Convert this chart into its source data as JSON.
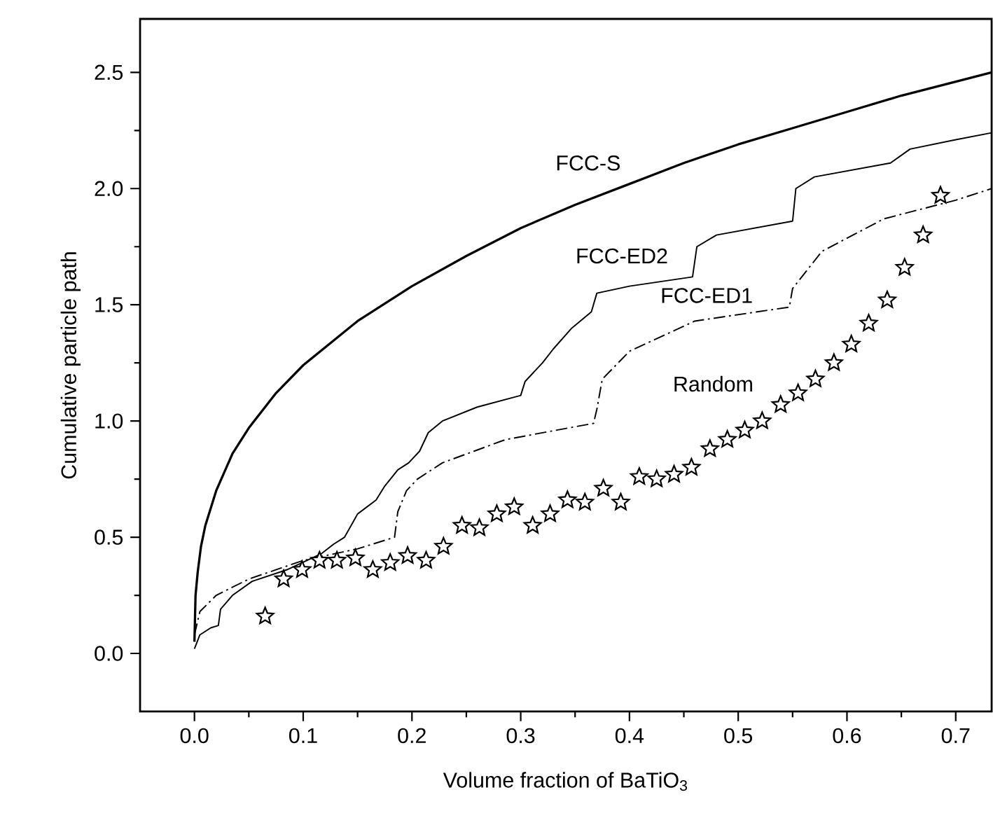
{
  "chart_data": {
    "type": "line",
    "xlabel": "Volume fraction of BaTiO$_{3}$",
    "ylabel": "Cumulative particle path",
    "xlim": [
      -0.05,
      0.733
    ],
    "ylim": [
      -0.25,
      2.73
    ],
    "xticks": [
      {
        "value": 0,
        "label": "0.0"
      },
      0.1,
      0.2,
      0.3,
      0.4,
      0.5,
      0.6,
      0.7
    ],
    "yticks": [
      {
        "value": 0,
        "label": "0.0"
      },
      0.5,
      {
        "value": 1,
        "label": "1.0"
      },
      1.5,
      {
        "value": 2,
        "label": "2.0"
      },
      2.5
    ],
    "grid": false,
    "legend": false,
    "series": [
      {
        "name": "FCC-S",
        "line_style": "solid",
        "color": "#000000",
        "x": [
          0,
          0.001,
          0.003,
          0.006,
          0.01,
          0.02,
          0.035,
          0.05,
          0.075,
          0.1,
          0.15,
          0.2,
          0.25,
          0.3,
          0.35,
          0.4,
          0.45,
          0.5,
          0.55,
          0.6,
          0.65,
          0.7,
          0.733
        ],
        "values": [
          0.05,
          0.25,
          0.35,
          0.46,
          0.55,
          0.7,
          0.86,
          0.97,
          1.12,
          1.24,
          1.43,
          1.58,
          1.71,
          1.83,
          1.93,
          2.02,
          2.11,
          2.19,
          2.26,
          2.33,
          2.4,
          2.46,
          2.5
        ]
      },
      {
        "name": "FCC-ED2",
        "line_style": "solid",
        "color": "#000000",
        "x": [
          0,
          0.005,
          0.015,
          0.022,
          0.024,
          0.035,
          0.053,
          0.085,
          0.117,
          0.128,
          0.138,
          0.15,
          0.167,
          0.175,
          0.187,
          0.197,
          0.207,
          0.215,
          0.228,
          0.26,
          0.3,
          0.304,
          0.32,
          0.33,
          0.347,
          0.365,
          0.37,
          0.4,
          0.458,
          0.462,
          0.48,
          0.55,
          0.553,
          0.57,
          0.64,
          0.658,
          0.7,
          0.733
        ],
        "values": [
          0.02,
          0.08,
          0.11,
          0.12,
          0.19,
          0.25,
          0.31,
          0.36,
          0.43,
          0.47,
          0.5,
          0.6,
          0.66,
          0.72,
          0.79,
          0.82,
          0.87,
          0.95,
          1.0,
          1.06,
          1.11,
          1.17,
          1.25,
          1.31,
          1.4,
          1.47,
          1.55,
          1.58,
          1.62,
          1.75,
          1.8,
          1.86,
          2.0,
          2.05,
          2.11,
          2.17,
          2.21,
          2.24
        ]
      },
      {
        "name": "FCC-ED1",
        "line_style": "dashed",
        "color": "#000000",
        "x": [
          0,
          0.005,
          0.02,
          0.05,
          0.1,
          0.15,
          0.184,
          0.187,
          0.195,
          0.205,
          0.228,
          0.286,
          0.367,
          0.37,
          0.375,
          0.4,
          0.46,
          0.547,
          0.55,
          0.577,
          0.634,
          0.7,
          0.733
        ],
        "values": [
          0.08,
          0.18,
          0.25,
          0.32,
          0.4,
          0.45,
          0.5,
          0.61,
          0.7,
          0.75,
          0.82,
          0.92,
          0.99,
          1.05,
          1.18,
          1.3,
          1.43,
          1.49,
          1.57,
          1.73,
          1.87,
          1.95,
          2.0
        ]
      },
      {
        "name": "Random",
        "type": "scatter",
        "marker": "star",
        "color": "#000000",
        "x": [
          0.065,
          0.082,
          0.099,
          0.115,
          0.131,
          0.148,
          0.164,
          0.18,
          0.196,
          0.213,
          0.229,
          0.246,
          0.262,
          0.278,
          0.294,
          0.311,
          0.327,
          0.343,
          0.359,
          0.376,
          0.392,
          0.409,
          0.425,
          0.441,
          0.457,
          0.474,
          0.49,
          0.506,
          0.522,
          0.539,
          0.555,
          0.571,
          0.588,
          0.604,
          0.62,
          0.637,
          0.653,
          0.67,
          0.686
        ],
        "values": [
          0.16,
          0.32,
          0.36,
          0.4,
          0.4,
          0.41,
          0.36,
          0.39,
          0.42,
          0.4,
          0.46,
          0.55,
          0.54,
          0.6,
          0.63,
          0.55,
          0.6,
          0.66,
          0.65,
          0.71,
          0.65,
          0.76,
          0.75,
          0.77,
          0.8,
          0.88,
          0.92,
          0.96,
          1.0,
          1.07,
          1.12,
          1.18,
          1.25,
          1.33,
          1.42,
          1.52,
          1.66,
          1.8,
          1.97
        ]
      }
    ]
  }
}
